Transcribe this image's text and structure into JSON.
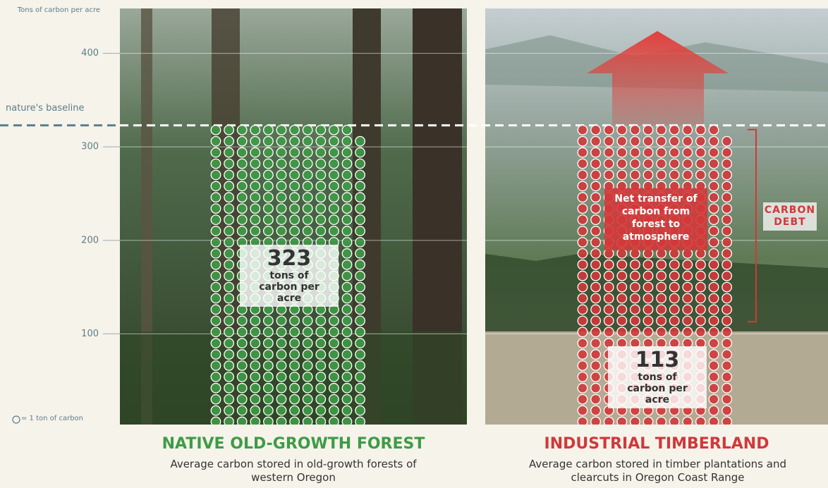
{
  "chart_data": {
    "type": "dot-bar",
    "y_axis_label": "Tons of carbon per acre",
    "ylim": [
      0,
      448
    ],
    "yticks": [
      100,
      200,
      300,
      400
    ],
    "baseline_label": "nature's baseline",
    "legend": "= 1 ton of carbon",
    "categories": [
      "NATIVE OLD-GROWTH FOREST",
      "INDUSTRIAL TIMBERLAND"
    ],
    "subtitles": [
      "Average carbon stored in old-growth forests of western Oregon",
      "Average carbon stored in timber plantations and clearcuts in Oregon Coast Range"
    ],
    "values": [
      323,
      113
    ],
    "value_unit": "tons of carbon per acre",
    "colors": [
      "#3f9b46",
      "#d1383a"
    ],
    "annotation": "Net transfer of carbon from forest to atmosphere",
    "debt_label": "CARBON DEBT"
  }
}
